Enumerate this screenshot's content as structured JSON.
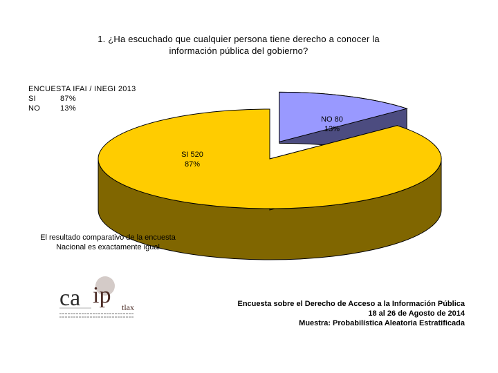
{
  "title": {
    "line1": "1. ¿Ha escuchado que cualquier persona tiene derecho a conocer la",
    "line2": "información pública del gobierno?"
  },
  "reference_survey": {
    "heading": "ENCUESTA IFAI / INEGI 2013",
    "rows": [
      {
        "label": "SI",
        "value": "87%"
      },
      {
        "label": "NO",
        "value": "13%"
      }
    ]
  },
  "note": {
    "line1": "El resultado comparativo de la encuesta",
    "line2": "Nacional es exactamente igual"
  },
  "footer": {
    "line1": "Encuesta sobre el Derecho de Acceso a la Información Pública",
    "line2": "18 al 26 de Agosto de 2014",
    "line3": "Muestra: Probabilística Aleatoria Estratificada"
  },
  "logo": {
    "text_ca": "ca",
    "text_ip": "ip",
    "text_sub": "tlax"
  },
  "colors": {
    "si_top": "#ffcc00",
    "si_side": "#806600",
    "no_top": "#9999ff",
    "no_side": "#4c4c80",
    "outline": "#000000"
  },
  "chart_data": {
    "type": "pie",
    "style": "3d-exploded",
    "slices": [
      {
        "name": "SI",
        "count": 520,
        "percent": 87,
        "label": "SI 520",
        "percent_label": "87%"
      },
      {
        "name": "NO",
        "count": 80,
        "percent": 13,
        "label": "NO 80",
        "percent_label": "13%"
      }
    ]
  }
}
